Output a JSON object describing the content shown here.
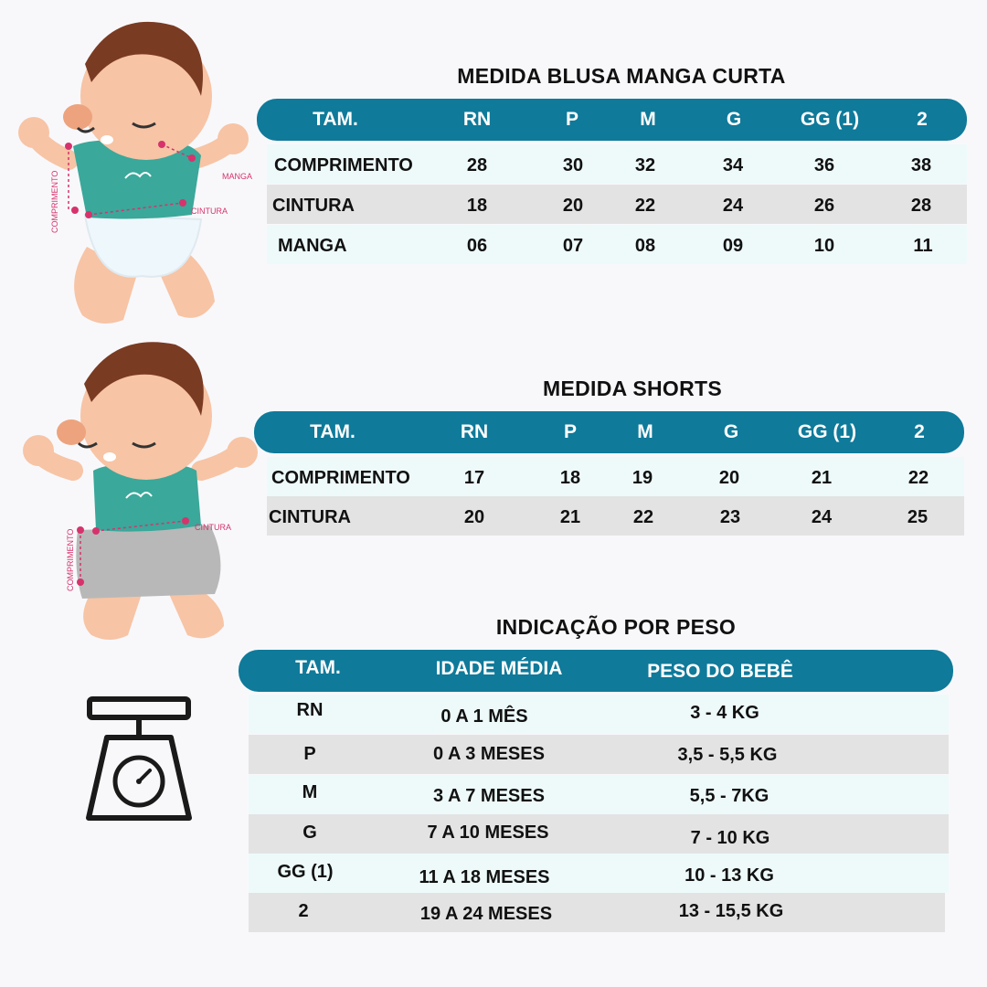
{
  "blusa": {
    "title": "MEDIDA BLUSA MANGA CURTA",
    "headers": [
      "TAM.",
      "RN",
      "P",
      "M",
      "G",
      "GG (1)",
      "2"
    ],
    "rows": [
      {
        "label": "COMPRIMENTO",
        "values": [
          "28",
          "30",
          "32",
          "34",
          "36",
          "38"
        ]
      },
      {
        "label": "CINTURA",
        "values": [
          "18",
          "20",
          "22",
          "24",
          "26",
          "28"
        ]
      },
      {
        "label": "MANGA",
        "values": [
          "06",
          "07",
          "08",
          "09",
          "10",
          "11"
        ]
      }
    ]
  },
  "shorts": {
    "title": "MEDIDA SHORTS",
    "headers": [
      "TAM.",
      "RN",
      "P",
      "M",
      "G",
      "GG (1)",
      "2"
    ],
    "rows": [
      {
        "label": "COMPRIMENTO",
        "values": [
          "17",
          "18",
          "19",
          "20",
          "21",
          "22"
        ]
      },
      {
        "label": "CINTURA",
        "values": [
          "20",
          "21",
          "22",
          "23",
          "24",
          "25"
        ]
      }
    ]
  },
  "peso": {
    "title": "INDICAÇÃO POR PESO",
    "headers": [
      "TAM.",
      "IDADE MÉDIA",
      "PESO DO BEBÊ"
    ],
    "rows": [
      {
        "size": "RN",
        "age": "0 A 1 MÊS",
        "weight": "3 - 4 KG"
      },
      {
        "size": "P",
        "age": "0 A 3 MESES",
        "weight": "3,5 - 5,5 KG"
      },
      {
        "size": "M",
        "age": "3 A 7 MESES",
        "weight": "5,5 - 7KG"
      },
      {
        "size": "G",
        "age": "7 A 10 MESES",
        "weight": "7 - 10 KG"
      },
      {
        "size": "GG (1)",
        "age": "11 A 18 MESES",
        "weight": "10 - 13 KG"
      },
      {
        "size": "2",
        "age": "19 A 24 MESES",
        "weight": "13 - 15,5 KG"
      }
    ]
  },
  "illustrations": {
    "blusa_labels": {
      "comprimento": "COMPRIMENTO",
      "manga": "MANGA",
      "cintura": "CINTURA"
    },
    "shorts_labels": {
      "comprimento": "COMPRIMENTO",
      "cintura": "CINTURA"
    },
    "accent_color": "#d6336c",
    "shirt_color": "#3aa89a",
    "shorts_color": "#b8b8b8",
    "header_color": "#0f7a9a"
  }
}
